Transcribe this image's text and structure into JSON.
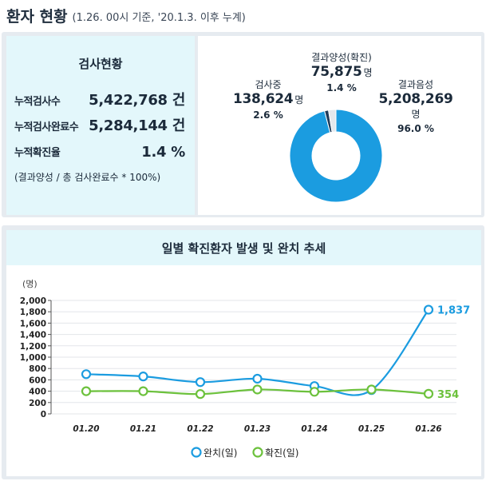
{
  "header": {
    "title": "환자 현황",
    "subtitle": "(1.26. 00시 기준, '20.1.3. 이후 누계)"
  },
  "summary": {
    "title": "검사현황",
    "rows": [
      {
        "label": "누적검사수",
        "value": "5,422,768 건"
      },
      {
        "label": "누적검사완료수",
        "value": "5,284,144 건"
      },
      {
        "label": "누적확진율",
        "value": "1.4 %"
      }
    ],
    "note": "(결과양성 / 총 검사완료수 * 100%)"
  },
  "donut": {
    "unit": "명",
    "segments": [
      {
        "label": "결과양성(확진)",
        "value_text": "75,875",
        "percent_text": "1.4 %",
        "percent": 1.4,
        "color": "#1f3b5a"
      },
      {
        "label": "검사중",
        "value_text": "138,624",
        "percent_text": "2.6 %",
        "percent": 2.6,
        "color": "#e5e8ec"
      },
      {
        "label": "결과음성",
        "value_text": "5,208,269",
        "percent_text": "96.0 %",
        "percent": 96.0,
        "color": "#1b9ce0"
      }
    ]
  },
  "chart_data": {
    "type": "line",
    "title": "일별 확진환자 발생 및 완치 추세",
    "ylabel": "(명)",
    "ylim": [
      0,
      2000
    ],
    "yticks": [
      0,
      200,
      400,
      600,
      800,
      1000,
      1200,
      1400,
      1600,
      1800,
      2000
    ],
    "ytick_labels": [
      "0",
      "200",
      "400",
      "600",
      "800",
      "1,000",
      "1,200",
      "1,400",
      "1,600",
      "1,800",
      "2,000"
    ],
    "categories": [
      "01.20",
      "01.21",
      "01.22",
      "01.23",
      "01.24",
      "01.25",
      "01.26"
    ],
    "grid": true,
    "legend": "bottom",
    "series": [
      {
        "name": "완치(일)",
        "color": "#1b9ce0",
        "values": [
          700,
          660,
          560,
          620,
          490,
          420,
          1837
        ],
        "end_label": "1,837"
      },
      {
        "name": "확진(일)",
        "color": "#6cc13c",
        "values": [
          400,
          400,
          350,
          430,
          390,
          430,
          354
        ],
        "end_label": "354"
      }
    ]
  }
}
